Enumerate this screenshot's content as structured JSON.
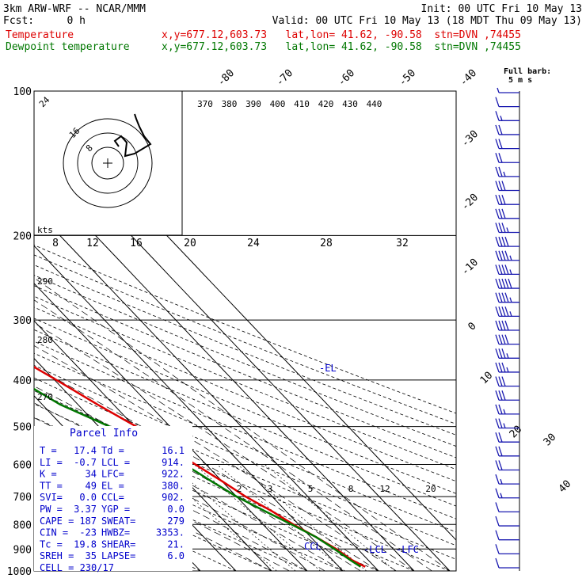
{
  "header": {
    "model": "3km ARW-WRF -- NCAR/MMM",
    "init": "Init: 00 UTC Fri 10 May 13",
    "fcst_label": "Fcst:",
    "fcst_value": "0 h",
    "valid": "Valid: 00 UTC Fri 10 May 13 (18 MDT Thu 09 May 13)",
    "series": [
      {
        "name": "Temperature",
        "info": "x,y=677.12,603.73   lat,lon= 41.62, -90.58  stn=DVN ,74455",
        "color": "#dd0000"
      },
      {
        "name": "Dewpoint temperature",
        "info": "x,y=677.12,603.73   lat,lon= 41.62, -90.58  stn=DVN ,74455",
        "color": "#007700"
      }
    ]
  },
  "barb_key": {
    "line1": "Full barb:",
    "line2": "5 m s"
  },
  "parcel": {
    "title": "Parcel Info",
    "rows": [
      [
        "T  =",
        "17.4",
        "Td =",
        "16.1"
      ],
      [
        "LI =",
        "-0.7",
        "LCL =",
        "914."
      ],
      [
        "K  =",
        "34",
        "LFC=",
        "922."
      ],
      [
        "TT =",
        "49",
        "EL =",
        "380."
      ],
      [
        "SVI=",
        "0.0",
        "CCL=",
        "902."
      ],
      [
        "PW =",
        "3.37",
        "YGP =",
        "0.0"
      ],
      [
        "CAPE =",
        "187",
        "SWEAT=",
        "279"
      ],
      [
        "CIN =",
        "-23",
        "HWBZ=",
        "3353."
      ],
      [
        "Tc =",
        "19.8",
        "SHEAR=",
        "21."
      ],
      [
        "SREH =",
        "35",
        "LAPSE=",
        "6.0"
      ]
    ],
    "cell": "CELL = 230/17"
  },
  "level_labels": {
    "el": "-EL",
    "ccl": "CCL",
    "lcl": "-LCL",
    "lfc": "-LFC"
  },
  "hodograph": {
    "kts_label": "kts",
    "ring_labels": [
      "8",
      "16",
      "24"
    ]
  },
  "chart_data": {
    "type": "line",
    "title": "",
    "ylabel": "",
    "pressure_ticks": [
      100,
      200,
      300,
      400,
      500,
      600,
      700,
      800,
      900,
      1000
    ],
    "temp_ticks": [
      -80,
      -70,
      -60,
      -50,
      -40,
      -30,
      -20,
      -10,
      0,
      10,
      20,
      30,
      40
    ],
    "theta_ticks": [
      370,
      380,
      390,
      400,
      410,
      420,
      430,
      440
    ],
    "mixratio_ticks": [
      "2",
      "3",
      "5",
      "8",
      "12",
      "20"
    ],
    "hodo_speed_ticks": [
      "8",
      "12",
      "16",
      "20",
      "24",
      "28",
      "32"
    ],
    "theta_e_ticks": [
      "290",
      "280",
      "270"
    ],
    "ylim": [
      1000,
      100
    ],
    "series": [
      {
        "name": "Temperature",
        "color": "#dd0000",
        "points": [
          [
            980,
            17.4
          ],
          [
            950,
            15.5
          ],
          [
            900,
            14
          ],
          [
            850,
            11.5
          ],
          [
            800,
            8.5
          ],
          [
            750,
            6
          ],
          [
            700,
            2.5
          ],
          [
            650,
            0
          ],
          [
            600,
            -3
          ],
          [
            550,
            -6
          ],
          [
            500,
            -9.5
          ],
          [
            450,
            -14.5
          ],
          [
            400,
            -19.5
          ],
          [
            350,
            -25.5
          ],
          [
            300,
            -33
          ],
          [
            250,
            -42
          ],
          [
            225,
            -46
          ],
          [
            200,
            -52
          ],
          [
            180,
            -55
          ],
          [
            160,
            -57
          ],
          [
            140,
            -56
          ],
          [
            120,
            -58
          ],
          [
            100,
            -59
          ]
        ]
      },
      {
        "name": "Dewpoint temperature",
        "color": "#007700",
        "points": [
          [
            980,
            16.1
          ],
          [
            950,
            15
          ],
          [
            900,
            13.5
          ],
          [
            850,
            11.5
          ],
          [
            800,
            8
          ],
          [
            750,
            4
          ],
          [
            700,
            0
          ],
          [
            650,
            -3
          ],
          [
            600,
            -6
          ],
          [
            550,
            -11
          ],
          [
            500,
            -17
          ],
          [
            450,
            -25
          ],
          [
            400,
            -30
          ],
          [
            350,
            -37
          ],
          [
            300,
            -45
          ],
          [
            250,
            -56
          ],
          [
            200,
            -66
          ],
          [
            170,
            -68
          ],
          [
            150,
            -67
          ],
          [
            130,
            -66
          ],
          [
            115,
            -70
          ],
          [
            100,
            -71
          ]
        ]
      }
    ],
    "wind_barb_speeds_ms": [
      3,
      5,
      7,
      9,
      10,
      11,
      13,
      14,
      15,
      16,
      18,
      20,
      22,
      22,
      24,
      23,
      22,
      21,
      20,
      18,
      17,
      16,
      15,
      13,
      12,
      11,
      10,
      9,
      8,
      7,
      6,
      6,
      5,
      5,
      5
    ]
  }
}
